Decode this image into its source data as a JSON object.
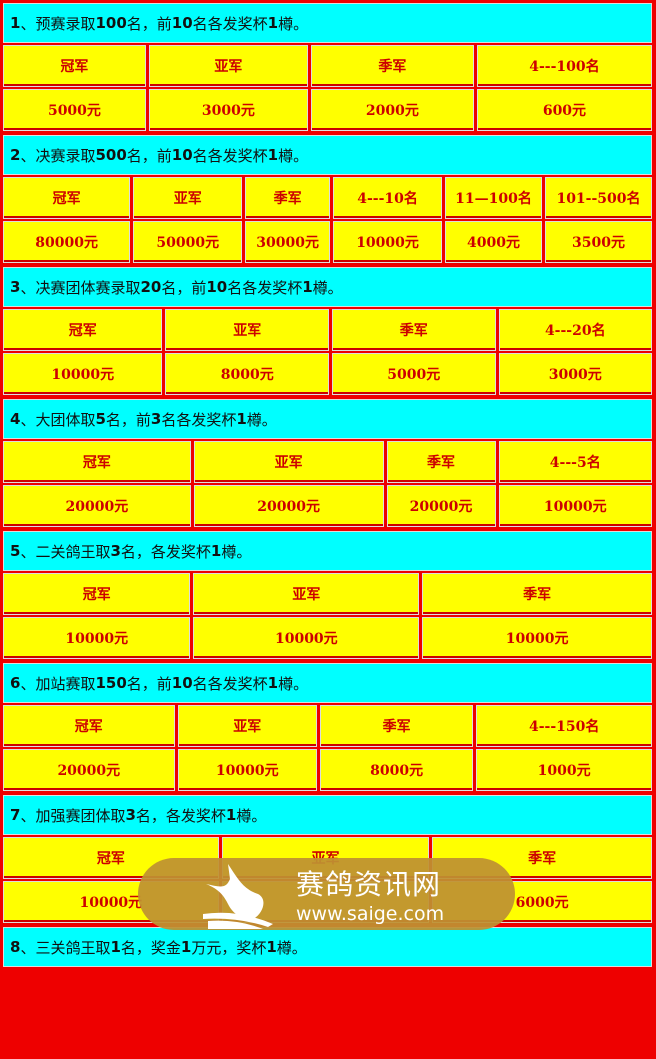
{
  "sections": [
    {
      "title": "1、预赛录取100名，前10名各发奖杯1樽。",
      "headers": [
        "冠军",
        "亚军",
        "季军",
        "4---100名"
      ],
      "values": [
        "5000元",
        "3000元",
        "2000元",
        "600元"
      ]
    },
    {
      "title": "2、决赛录取500名，前10名各发奖杯1樽。",
      "headers": [
        "冠军",
        "亚军",
        "季军",
        "4---10名",
        "11—100名",
        "101--500名"
      ],
      "values": [
        "80000元",
        "50000元",
        "30000元",
        "10000元",
        "4000元",
        "3500元"
      ]
    },
    {
      "title": "3、决赛团体赛录取20名，前10名各发奖杯1樽。",
      "headers": [
        "冠军",
        "亚军",
        "季军",
        "4---20名"
      ],
      "values": [
        "10000元",
        "8000元",
        "5000元",
        "3000元"
      ]
    },
    {
      "title": "4、大团体取5名，前3名各发奖杯1樽。",
      "headers": [
        "冠军",
        "亚军",
        "季军",
        "4---5名"
      ],
      "values": [
        "20000元",
        "20000元",
        "20000元",
        "10000元"
      ]
    },
    {
      "title": "5、二关鸽王取3名，各发奖杯1樽。",
      "headers": [
        "冠军",
        "亚军",
        "季军"
      ],
      "values": [
        "10000元",
        "10000元",
        "10000元"
      ]
    },
    {
      "title": "6、加站赛取150名，前10名各发奖杯1樽。",
      "headers": [
        "冠军",
        "亚军",
        "季军",
        "4---150名"
      ],
      "values": [
        "20000元",
        "10000元",
        "8000元",
        "1000元"
      ]
    },
    {
      "title": "7、加强赛团体取3名，各发奖杯1樽。",
      "headers": [
        "冠军",
        "亚军",
        "季军"
      ],
      "values": [
        "10000元",
        "",
        "6000元"
      ]
    },
    {
      "title": "8、三关鸽王取1名，奖金1万元，奖杯1樽。"
    }
  ],
  "watermark": {
    "name": "赛鸽资讯网",
    "url": "www.saige.com",
    "icon": "pigeon-logo-icon"
  }
}
